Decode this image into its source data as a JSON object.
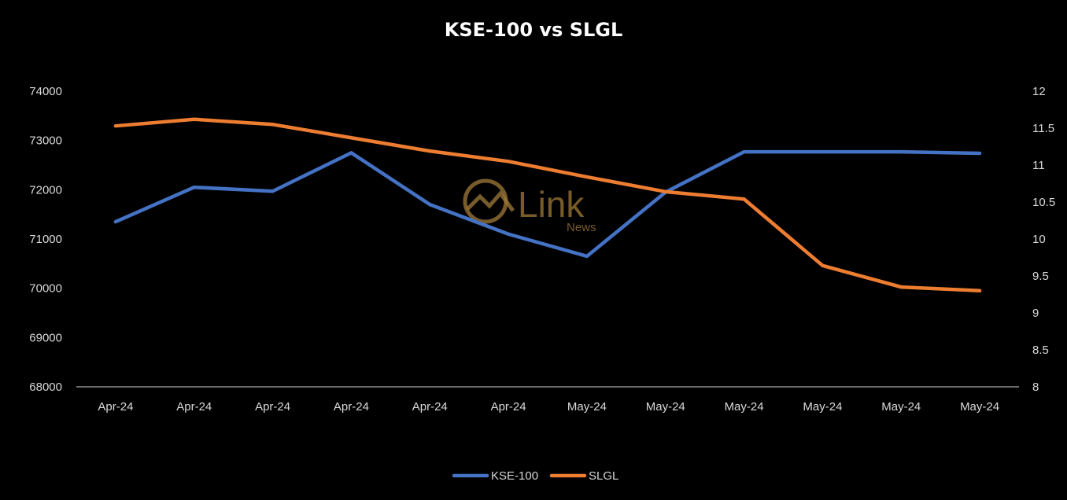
{
  "chart_data": {
    "type": "line",
    "title": "KSE-100 vs SLGL",
    "categories": [
      "Apr-24",
      "Apr-24",
      "Apr-24",
      "Apr-24",
      "Apr-24",
      "Apr-24",
      "May-24",
      "May-24",
      "May-24",
      "May-24",
      "May-24",
      "May-24"
    ],
    "y_left": {
      "min": 68000,
      "max": 74000,
      "ticks": [
        68000,
        69000,
        70000,
        71000,
        72000,
        73000,
        74000
      ]
    },
    "y_right": {
      "min": 8,
      "max": 12,
      "ticks": [
        "8",
        "8.5",
        "9",
        "9.5",
        "10",
        "10.5",
        "11",
        "11.5",
        "12"
      ]
    },
    "series": [
      {
        "name": "KSE-100",
        "axis": "left",
        "color": "#4472c4",
        "values": [
          71350,
          72050,
          71970,
          72750,
          71700,
          71100,
          70650,
          71950,
          72770,
          72770,
          72770,
          72740
        ]
      },
      {
        "name": "SLGL",
        "axis": "right",
        "color": "#ed7d31",
        "values": [
          11.53,
          11.62,
          11.55,
          11.37,
          11.19,
          11.05,
          10.84,
          10.64,
          10.54,
          9.64,
          9.35,
          9.3
        ]
      }
    ],
    "legend": "bottom",
    "grid": false
  },
  "watermark": {
    "text": "Link",
    "sub": "News"
  }
}
